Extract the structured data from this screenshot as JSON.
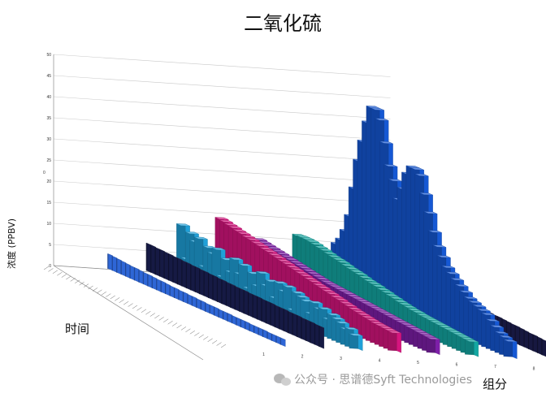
{
  "chart_data": {
    "type": "bar",
    "title": "二氧化硫",
    "ylabel": "浓度 (PPBV)",
    "xlabel": "时间",
    "zlabel": "组分",
    "ylim": [
      0,
      50
    ],
    "y_ticks": [
      "0",
      "5",
      "10",
      "15",
      "20",
      "25",
      "30",
      "35",
      "40",
      "45",
      "50"
    ],
    "y_axis_small_label": "0",
    "component_ticks": [
      "1",
      "2",
      "3",
      "4",
      "5",
      "6",
      "7",
      "8"
    ],
    "grid": true,
    "legend": "none",
    "series": [
      {
        "component": "1",
        "color": "#2e66d6",
        "values": [
          3.5,
          3.4,
          3.3,
          3.2,
          3.1,
          3.0,
          3.0,
          2.9,
          2.8,
          2.8,
          2.7,
          2.6,
          2.6,
          2.5,
          2.4,
          2.4,
          2.3,
          2.3,
          2.2,
          2.2,
          2.1,
          2.1,
          2.0,
          2.0,
          2.0,
          1.9,
          1.9,
          1.9,
          1.8,
          1.8,
          1.8,
          1.8,
          1.7,
          1.7,
          1.7,
          1.7,
          1.6,
          1.6,
          1.6,
          1.6
        ]
      },
      {
        "component": "2",
        "color": "#161a44",
        "values": [
          6.5,
          6.5,
          6.4,
          6.4,
          6.3,
          6.3,
          6.2,
          6.2,
          6.1,
          6.1,
          6.0,
          6.0,
          5.9,
          5.9,
          5.8,
          5.8,
          5.7,
          5.7,
          5.6,
          5.6,
          5.5,
          5.5,
          5.5,
          5.4,
          5.4,
          5.4,
          5.3,
          5.3,
          5.3,
          5.2,
          5.2,
          5.2,
          5.1,
          5.1,
          5.1,
          5.0,
          5.0,
          5.0,
          4.9,
          4.9
        ]
      },
      {
        "component": "3",
        "color": "#1fa0d8",
        "values": [
          11.5,
          4.0,
          10.5,
          9.0,
          10.2,
          4.0,
          9.0,
          8.0,
          9.5,
          3.5,
          8.0,
          5.5,
          9.0,
          6.0,
          8.5,
          3.5,
          7.5,
          5.0,
          8.5,
          6.0,
          7.5,
          4.0,
          8.0,
          6.5,
          8.0,
          3.0,
          7.5,
          7.0,
          6.5,
          4.0,
          7.0,
          6.0,
          6.5,
          4.5,
          6.0,
          5.5,
          5.0,
          4.0,
          4.5,
          3.5
        ]
      },
      {
        "component": "4",
        "color": "#d6157e",
        "values": [
          13.5,
          13.3,
          13.0,
          12.8,
          12.5,
          12.3,
          12.0,
          11.8,
          11.5,
          11.3,
          11.0,
          10.8,
          10.5,
          10.3,
          10.0,
          9.8,
          9.5,
          9.3,
          9.0,
          8.8,
          8.5,
          8.3,
          8.0,
          7.8,
          7.5,
          7.3,
          7.0,
          6.8,
          6.5,
          6.3,
          6.0,
          5.8,
          5.6,
          5.4,
          5.2,
          5.0,
          4.9,
          4.8,
          4.7,
          4.6
        ]
      },
      {
        "component": "5",
        "color": "#7d1fa8",
        "values": [
          9.0,
          8.8,
          8.6,
          8.4,
          8.2,
          8.0,
          7.8,
          7.6,
          7.4,
          7.2,
          7.0,
          6.8,
          6.6,
          6.4,
          6.2,
          6.0,
          5.9,
          5.8,
          5.7,
          5.6,
          5.5,
          5.4,
          5.3,
          5.2,
          5.1,
          5.0,
          4.9,
          4.8,
          4.7,
          4.6,
          4.5,
          4.4,
          4.3,
          4.2,
          4.1,
          4.0,
          3.9,
          3.8,
          3.7,
          3.6
        ]
      },
      {
        "component": "6",
        "color": "#14a7a2",
        "values": [
          10.5,
          10.6,
          10.6,
          10.5,
          10.3,
          10.0,
          9.8,
          9.5,
          9.2,
          9.0,
          8.8,
          8.5,
          8.2,
          8.0,
          7.8,
          7.5,
          7.2,
          7.0,
          6.8,
          6.5,
          6.3,
          6.0,
          5.8,
          5.5,
          5.3,
          5.1,
          4.9,
          4.8,
          4.6,
          4.5,
          4.4,
          4.3,
          4.2,
          4.1,
          4.0,
          3.9,
          3.8,
          3.7,
          3.6,
          3.5
        ]
      },
      {
        "component": "7",
        "color": "#1558d4",
        "values": [
          9.0,
          10.5,
          13.0,
          17.0,
          24.0,
          31.0,
          36.0,
          41.0,
          45.0,
          45.0,
          43.0,
          38.0,
          33.0,
          30.0,
          26.0,
          29.0,
          33.0,
          35.0,
          35.0,
          34.0,
          30.0,
          26.0,
          22.0,
          19.0,
          17.0,
          15.0,
          14.0,
          13.0,
          12.0,
          11.0,
          10.0,
          9.5,
          9.0,
          8.5,
          8.0,
          7.0,
          6.0,
          5.0,
          4.5,
          4.0
        ]
      },
      {
        "component": "8",
        "color": "#171840",
        "values": [
          6.5,
          6.4,
          6.3,
          6.3,
          6.2,
          6.1,
          6.0,
          6.0,
          5.9,
          5.8,
          5.7,
          5.7,
          5.6,
          5.5,
          5.4,
          5.4,
          5.3,
          5.2,
          5.1,
          5.1,
          5.0,
          4.9,
          4.8,
          4.8,
          4.7,
          4.6,
          4.5,
          4.5,
          4.4,
          4.3,
          4.2,
          4.2,
          4.1,
          4.0,
          3.9,
          3.9,
          3.8,
          3.7,
          3.6,
          3.5
        ]
      }
    ]
  },
  "watermark": {
    "text": "公众号 · 思谱德Syft Technologies",
    "icon": "wechat-icon"
  }
}
